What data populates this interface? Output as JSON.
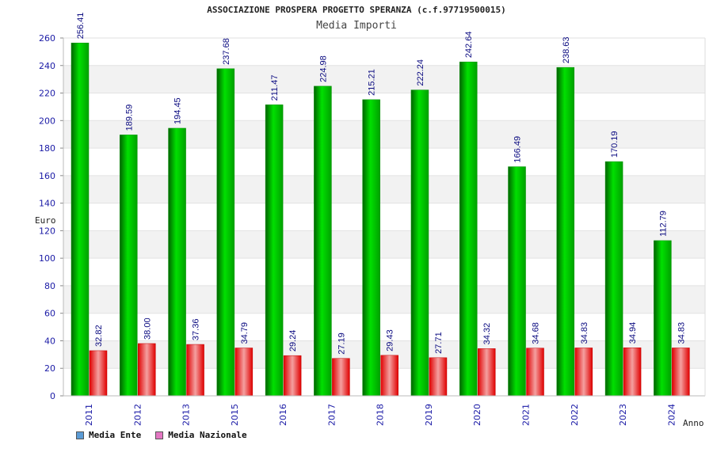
{
  "header": {
    "title": "ASSOCIAZIONE PROSPERA PROGETTO SPERANZA (c.f.97719500015)",
    "subtitle": "Media Importi"
  },
  "legend": {
    "items": [
      {
        "label": "Media Ente",
        "color": "#5b9bd5"
      },
      {
        "label": "Media Nazionale",
        "color": "#e377c2"
      }
    ]
  },
  "chart_data": {
    "type": "bar",
    "title": "ASSOCIAZIONE PROSPERA PROGETTO SPERANZA (c.f.97719500015)",
    "subtitle": "Media Importi",
    "xlabel": "Anno",
    "ylabel": "Euro",
    "ylim": [
      0,
      260
    ],
    "yticks": [
      0,
      20,
      40,
      60,
      80,
      100,
      120,
      140,
      160,
      180,
      200,
      220,
      240,
      260
    ],
    "grid": true,
    "legend_position": "bottom-left",
    "categories": [
      "2011",
      "2012",
      "2013",
      "2015",
      "2016",
      "2017",
      "2018",
      "2019",
      "2020",
      "2021",
      "2022",
      "2023",
      "2024"
    ],
    "series": [
      {
        "name": "Media Ente",
        "color": "#00c000",
        "values": [
          256.41,
          189.59,
          194.45,
          237.68,
          211.47,
          224.98,
          215.21,
          222.24,
          242.64,
          166.49,
          238.63,
          170.19,
          112.79
        ],
        "labels": [
          "256.41",
          "189.59",
          "194.45",
          "237.68",
          "211.47",
          "224.98",
          "215.21",
          "222.24",
          "242.64",
          "166.49",
          "238.63",
          "170.19",
          "112.79"
        ]
      },
      {
        "name": "Media Nazionale",
        "color": "#e00000",
        "values": [
          32.82,
          38.0,
          37.36,
          34.79,
          29.24,
          27.19,
          29.43,
          27.71,
          34.32,
          34.68,
          34.83,
          34.94,
          34.83
        ],
        "labels": [
          "32.82",
          "38.00",
          "37.36",
          "34.79",
          "29.24",
          "27.19",
          "29.43",
          "27.71",
          "34.32",
          "34.68",
          "34.83",
          "34.94",
          "34.83"
        ]
      }
    ]
  }
}
